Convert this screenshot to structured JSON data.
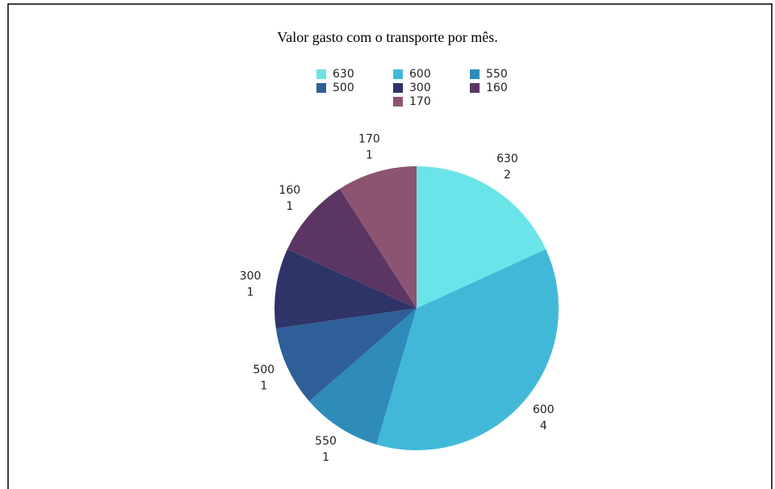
{
  "chart_data": {
    "type": "pie",
    "title": "Valor gasto  com o transporte por mês.",
    "categories": [
      "630",
      "600",
      "550",
      "500",
      "300",
      "160",
      "170"
    ],
    "values": [
      2,
      4,
      1,
      1,
      1,
      1,
      1
    ],
    "colors": [
      "#6be4e9",
      "#42b8d8",
      "#2e8bba",
      "#2e5f98",
      "#2e3468",
      "#5b3663",
      "#8c5470"
    ],
    "legend": "top"
  }
}
